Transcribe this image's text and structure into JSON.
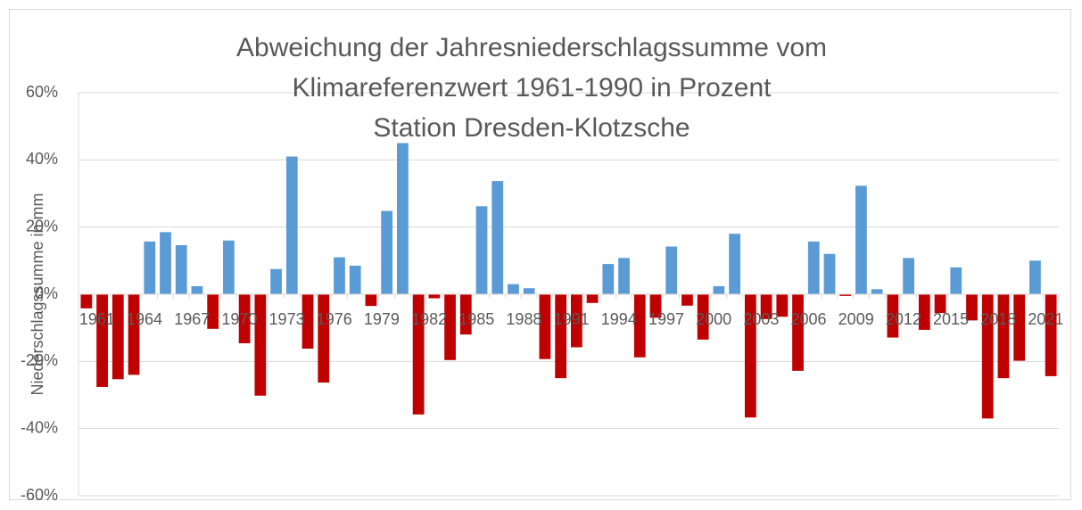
{
  "chart_data": {
    "type": "bar",
    "title": [
      "Abweichung der Jahresniederschlagssumme vom",
      "Klimareferenzwert 1961-1990 in Prozent",
      "Station Dresden-Klotzsche"
    ],
    "y_label": "Niederschlagssumme in mm",
    "categories": [
      "1961",
      null,
      null,
      "1964",
      null,
      null,
      "1967",
      null,
      null,
      "1970",
      null,
      null,
      "1973",
      null,
      null,
      "1976",
      null,
      null,
      "1979",
      null,
      null,
      "1982",
      null,
      null,
      "1985",
      null,
      null,
      "1988",
      null,
      null,
      "1991",
      null,
      null,
      "1994",
      null,
      null,
      "1997",
      null,
      null,
      "2000",
      null,
      null,
      "2003",
      null,
      null,
      "2006",
      null,
      null,
      "2009",
      null,
      null,
      "2012",
      null,
      null,
      "2015",
      null,
      null,
      "2018",
      null,
      null,
      "2021",
      null
    ],
    "values": [
      -4.2,
      -27.6,
      -25.3,
      -24.0,
      15.7,
      18.5,
      14.6,
      2.4,
      -10.3,
      16.0,
      -14.6,
      -30.2,
      7.5,
      41.0,
      -16.2,
      -26.3,
      11.0,
      8.5,
      -3.5,
      24.8,
      45.0,
      -35.8,
      -1.2,
      -19.6,
      -12.0,
      26.2,
      33.7,
      3.0,
      1.8,
      -19.3,
      -25.0,
      -15.8,
      -2.6,
      9.0,
      10.8,
      -18.8,
      -7.0,
      14.2,
      -3.4,
      -13.5,
      2.4,
      18.0,
      -36.7,
      -7.4,
      -6.7,
      -22.8,
      15.7,
      12.0,
      -0.5,
      32.3,
      1.5,
      -12.9,
      10.8,
      -10.6,
      -5.6,
      8.0,
      -7.8,
      -37.0,
      -25.0,
      -19.8,
      10.0,
      -24.4
    ],
    "positive_color": "#5b9bd5",
    "negative_color": "#c00000",
    "ylim": [
      -60,
      60
    ],
    "yticks": [
      {
        "value": -60,
        "label": "-60%"
      },
      {
        "value": -40,
        "label": "-40%"
      },
      {
        "value": -20,
        "label": "-20%"
      },
      {
        "value": 0,
        "label": "0%"
      },
      {
        "value": 20,
        "label": "20%"
      },
      {
        "value": 40,
        "label": "40%"
      },
      {
        "value": 60,
        "label": "60%"
      }
    ],
    "grid": true
  }
}
